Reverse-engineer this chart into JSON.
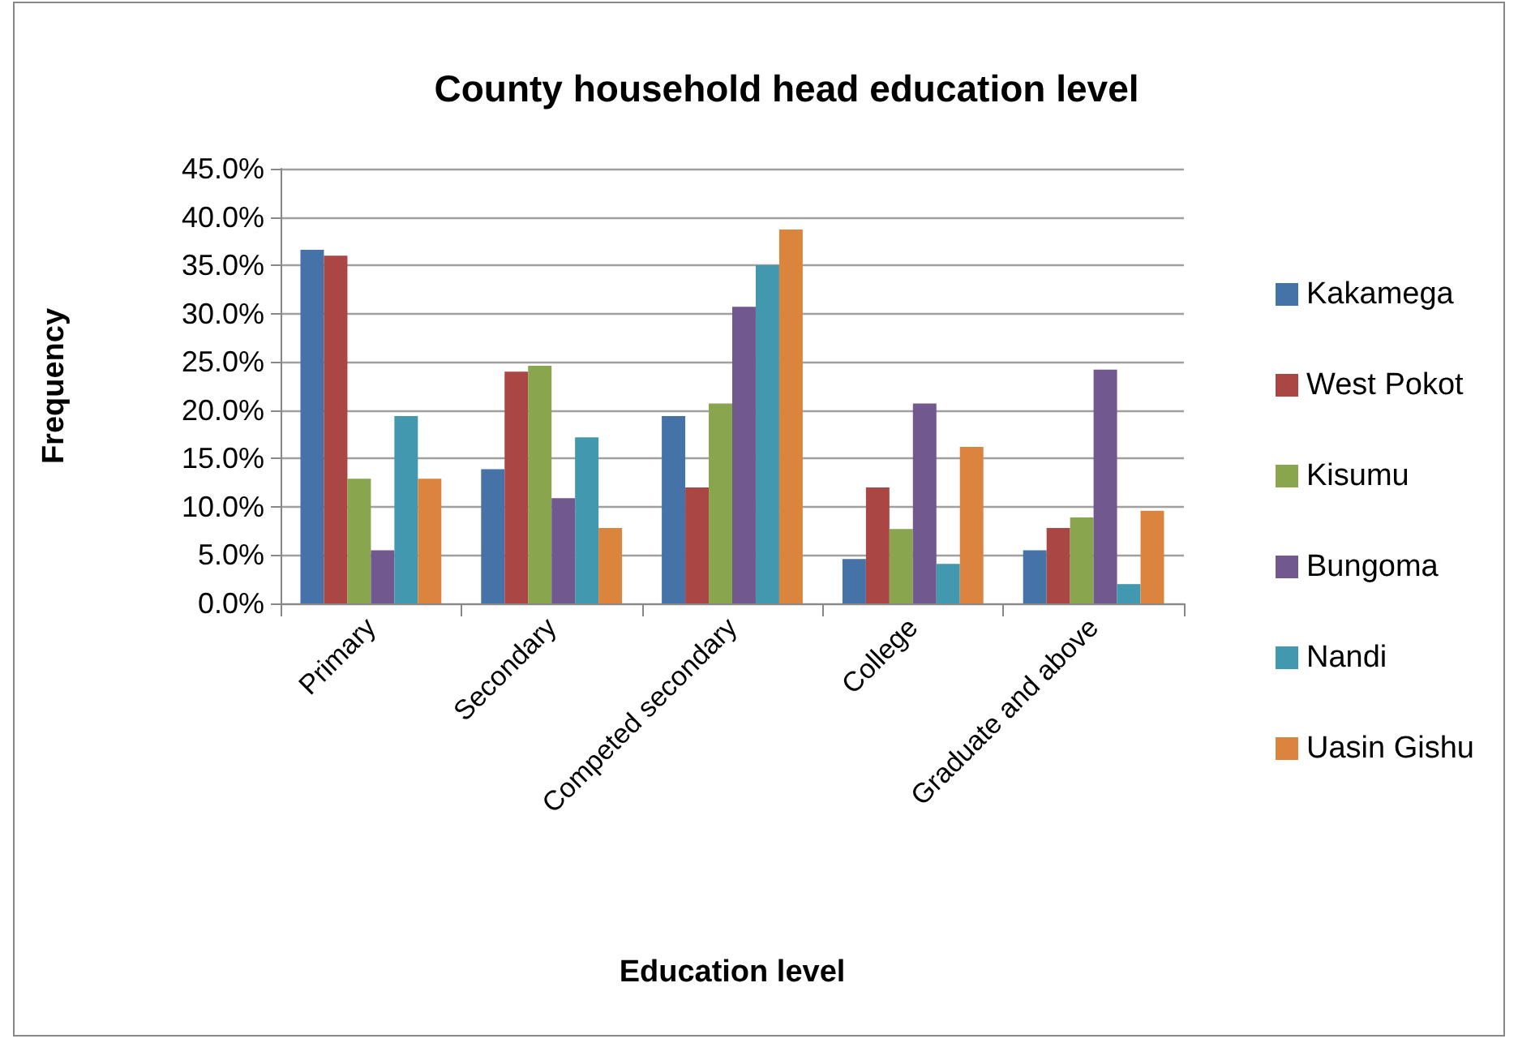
{
  "chart_data": {
    "type": "bar",
    "title": "County household head education level",
    "xlabel": "Education level",
    "ylabel": "Frequency",
    "categories": [
      "Primary",
      "Secondary",
      "Competed secondary",
      "College",
      "Graduate and above"
    ],
    "series": [
      {
        "name": "Kakamega",
        "color": "#4572a7",
        "values": [
          36.6,
          13.9,
          19.4,
          4.6,
          5.5
        ]
      },
      {
        "name": "West Pokot",
        "color": "#aa4643",
        "values": [
          36.0,
          24.0,
          12.0,
          12.0,
          7.8
        ]
      },
      {
        "name": "Kisumu",
        "color": "#89a54e",
        "values": [
          12.9,
          24.6,
          20.7,
          7.7,
          8.9
        ]
      },
      {
        "name": "Bungoma",
        "color": "#71588f",
        "values": [
          5.5,
          10.9,
          30.7,
          20.7,
          24.2
        ]
      },
      {
        "name": "Nandi",
        "color": "#4198af",
        "values": [
          19.4,
          17.2,
          35.0,
          4.1,
          2.0
        ]
      },
      {
        "name": "Uasin Gishu",
        "color": "#db843d",
        "values": [
          12.9,
          7.8,
          38.7,
          16.2,
          9.6
        ]
      }
    ],
    "ylim": [
      0,
      45
    ],
    "yticks": [
      {
        "value": 0,
        "label": "0.0%"
      },
      {
        "value": 5,
        "label": "5.0%"
      },
      {
        "value": 10,
        "label": "10.0%"
      },
      {
        "value": 15,
        "label": "15.0%"
      },
      {
        "value": 20,
        "label": "20.0%"
      },
      {
        "value": 25,
        "label": "25.0%"
      },
      {
        "value": 30,
        "label": "30.0%"
      },
      {
        "value": 35,
        "label": "35.0%"
      },
      {
        "value": 40,
        "label": "40.0%"
      },
      {
        "value": 45,
        "label": "45.0%"
      }
    ],
    "grid": "y",
    "legend": "right"
  }
}
